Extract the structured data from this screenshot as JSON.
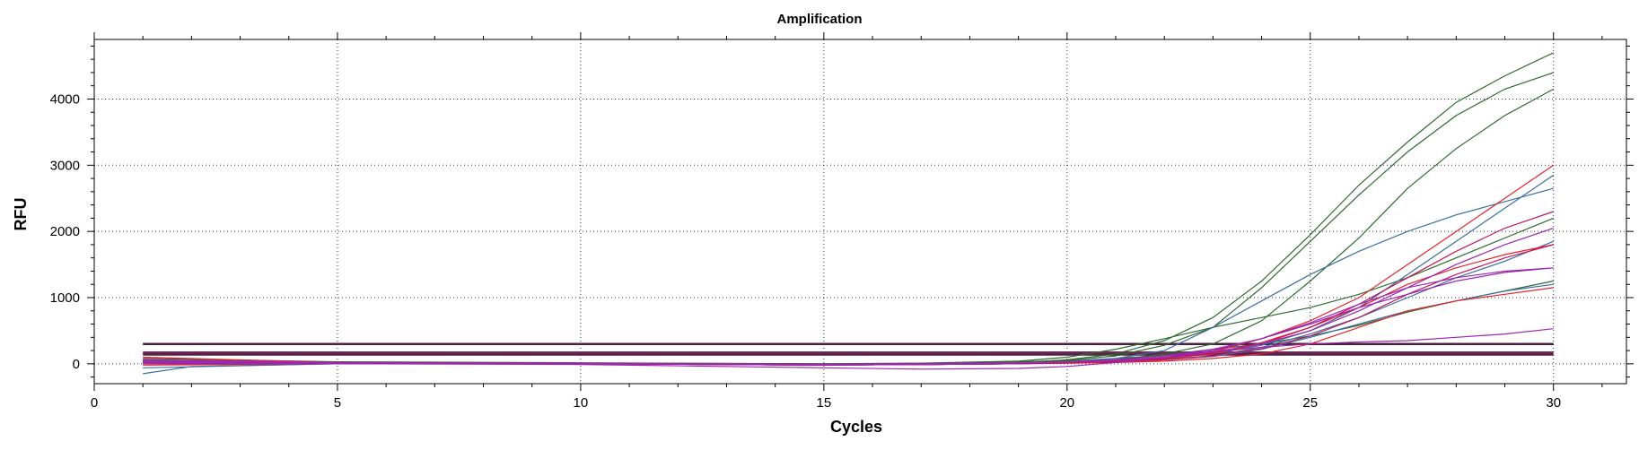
{
  "chart_data": {
    "type": "line",
    "title": "Amplification",
    "xlabel": "Cycles",
    "ylabel": "RFU",
    "xlim": [
      0,
      31.5
    ],
    "ylim": [
      -300,
      4900
    ],
    "x_ticks": [
      0,
      5,
      10,
      15,
      20,
      25,
      30
    ],
    "y_ticks": [
      0,
      1000,
      2000,
      3000,
      4000
    ],
    "grid": true,
    "legend": "none",
    "thresholds": [
      {
        "value": 300,
        "color": "#4b1f3f"
      },
      {
        "value": 170,
        "color": "#6a2a55"
      },
      {
        "value": 140,
        "color": "#5a1e48"
      }
    ],
    "series": [
      {
        "color": "#2f6b2f",
        "points": [
          [
            1,
            40
          ],
          [
            5,
            20
          ],
          [
            10,
            10
          ],
          [
            15,
            -20
          ],
          [
            17,
            0
          ],
          [
            19,
            20
          ],
          [
            20,
            60
          ],
          [
            21,
            150
          ],
          [
            22,
            350
          ],
          [
            23,
            700
          ],
          [
            24,
            1250
          ],
          [
            25,
            1950
          ],
          [
            26,
            2700
          ],
          [
            27,
            3350
          ],
          [
            28,
            3950
          ],
          [
            29,
            4350
          ],
          [
            30,
            4700
          ]
        ]
      },
      {
        "color": "#2f6b2f",
        "points": [
          [
            1,
            30
          ],
          [
            5,
            15
          ],
          [
            10,
            5
          ],
          [
            15,
            -10
          ],
          [
            17,
            0
          ],
          [
            19,
            30
          ],
          [
            20,
            50
          ],
          [
            21,
            120
          ],
          [
            22,
            280
          ],
          [
            23,
            550
          ],
          [
            24,
            1150
          ],
          [
            25,
            1850
          ],
          [
            26,
            2550
          ],
          [
            27,
            3200
          ],
          [
            28,
            3750
          ],
          [
            29,
            4150
          ],
          [
            30,
            4400
          ]
        ]
      },
      {
        "color": "#2f6b2f",
        "points": [
          [
            1,
            20
          ],
          [
            5,
            10
          ],
          [
            10,
            0
          ],
          [
            15,
            -20
          ],
          [
            17,
            -10
          ],
          [
            19,
            0
          ],
          [
            20,
            30
          ],
          [
            21,
            60
          ],
          [
            22,
            150
          ],
          [
            23,
            300
          ],
          [
            24,
            650
          ],
          [
            25,
            1250
          ],
          [
            26,
            1900
          ],
          [
            27,
            2650
          ],
          [
            28,
            3250
          ],
          [
            29,
            3750
          ],
          [
            30,
            4150
          ]
        ]
      },
      {
        "color": "#2f6b2f",
        "points": [
          [
            1,
            60
          ],
          [
            5,
            20
          ],
          [
            10,
            10
          ],
          [
            15,
            0
          ],
          [
            17,
            10
          ],
          [
            19,
            40
          ],
          [
            20,
            100
          ],
          [
            21,
            220
          ],
          [
            22,
            380
          ],
          [
            23,
            550
          ],
          [
            24,
            700
          ],
          [
            25,
            850
          ],
          [
            26,
            1050
          ],
          [
            27,
            1300
          ],
          [
            28,
            1600
          ],
          [
            29,
            1900
          ],
          [
            30,
            2200
          ]
        ]
      },
      {
        "color": "#2f6b2f",
        "points": [
          [
            1,
            80
          ],
          [
            5,
            30
          ],
          [
            10,
            15
          ],
          [
            15,
            0
          ],
          [
            17,
            5
          ],
          [
            19,
            20
          ],
          [
            20,
            40
          ],
          [
            21,
            80
          ],
          [
            22,
            130
          ],
          [
            23,
            220
          ],
          [
            24,
            300
          ],
          [
            25,
            420
          ],
          [
            26,
            580
          ],
          [
            27,
            780
          ],
          [
            28,
            950
          ],
          [
            29,
            1100
          ],
          [
            30,
            1250
          ]
        ]
      },
      {
        "color": "#3a6ea5",
        "points": [
          [
            1,
            -150
          ],
          [
            2,
            -40
          ],
          [
            5,
            0
          ],
          [
            10,
            0
          ],
          [
            15,
            -20
          ],
          [
            17,
            -10
          ],
          [
            19,
            0
          ],
          [
            20,
            30
          ],
          [
            21,
            80
          ],
          [
            22,
            200
          ],
          [
            23,
            550
          ],
          [
            24,
            950
          ],
          [
            25,
            1350
          ],
          [
            26,
            1700
          ],
          [
            27,
            2000
          ],
          [
            28,
            2250
          ],
          [
            29,
            2450
          ],
          [
            30,
            2650
          ]
        ]
      },
      {
        "color": "#3a6ea5",
        "points": [
          [
            1,
            -60
          ],
          [
            5,
            0
          ],
          [
            10,
            0
          ],
          [
            15,
            -10
          ],
          [
            17,
            0
          ],
          [
            19,
            10
          ],
          [
            20,
            20
          ],
          [
            21,
            40
          ],
          [
            22,
            80
          ],
          [
            23,
            150
          ],
          [
            24,
            280
          ],
          [
            25,
            500
          ],
          [
            26,
            850
          ],
          [
            27,
            1350
          ],
          [
            28,
            1850
          ],
          [
            29,
            2350
          ],
          [
            30,
            2850
          ]
        ]
      },
      {
        "color": "#3a6ea5",
        "points": [
          [
            1,
            20
          ],
          [
            5,
            0
          ],
          [
            10,
            0
          ],
          [
            15,
            -20
          ],
          [
            17,
            -10
          ],
          [
            19,
            0
          ],
          [
            20,
            20
          ],
          [
            21,
            40
          ],
          [
            22,
            70
          ],
          [
            23,
            120
          ],
          [
            24,
            250
          ],
          [
            25,
            450
          ],
          [
            26,
            700
          ],
          [
            27,
            1000
          ],
          [
            28,
            1300
          ],
          [
            29,
            1550
          ],
          [
            30,
            1850
          ]
        ]
      },
      {
        "color": "#3a6ea5",
        "points": [
          [
            1,
            30
          ],
          [
            5,
            5
          ],
          [
            10,
            0
          ],
          [
            15,
            -10
          ],
          [
            17,
            -5
          ],
          [
            19,
            5
          ],
          [
            20,
            15
          ],
          [
            21,
            30
          ],
          [
            22,
            60
          ],
          [
            23,
            110
          ],
          [
            24,
            220
          ],
          [
            25,
            400
          ],
          [
            26,
            600
          ],
          [
            27,
            800
          ],
          [
            28,
            950
          ],
          [
            29,
            1100
          ],
          [
            30,
            1200
          ]
        ]
      },
      {
        "color": "#e8222a",
        "points": [
          [
            1,
            -20
          ],
          [
            5,
            0
          ],
          [
            10,
            0
          ],
          [
            15,
            -20
          ],
          [
            17,
            -10
          ],
          [
            19,
            0
          ],
          [
            20,
            10
          ],
          [
            21,
            30
          ],
          [
            22,
            80
          ],
          [
            23,
            180
          ],
          [
            24,
            380
          ],
          [
            25,
            650
          ],
          [
            26,
            1000
          ],
          [
            27,
            1500
          ],
          [
            28,
            2000
          ],
          [
            29,
            2500
          ],
          [
            30,
            3000
          ]
        ]
      },
      {
        "color": "#e8222a",
        "points": [
          [
            1,
            100
          ],
          [
            5,
            20
          ],
          [
            10,
            10
          ],
          [
            15,
            -10
          ],
          [
            17,
            0
          ],
          [
            19,
            10
          ],
          [
            20,
            20
          ],
          [
            21,
            40
          ],
          [
            22,
            80
          ],
          [
            23,
            150
          ],
          [
            24,
            300
          ],
          [
            25,
            550
          ],
          [
            26,
            850
          ],
          [
            27,
            1200
          ],
          [
            28,
            1450
          ],
          [
            29,
            1650
          ],
          [
            30,
            1800
          ]
        ]
      },
      {
        "color": "#e8222a",
        "points": [
          [
            1,
            50
          ],
          [
            5,
            10
          ],
          [
            10,
            0
          ],
          [
            15,
            -20
          ],
          [
            17,
            -10
          ],
          [
            19,
            0
          ],
          [
            20,
            10
          ],
          [
            21,
            20
          ],
          [
            22,
            40
          ],
          [
            23,
            80
          ],
          [
            24,
            150
          ],
          [
            25,
            300
          ],
          [
            26,
            550
          ],
          [
            27,
            800
          ],
          [
            28,
            950
          ],
          [
            29,
            1050
          ],
          [
            30,
            1150
          ]
        ]
      },
      {
        "color": "#c2185b",
        "points": [
          [
            1,
            0
          ],
          [
            5,
            0
          ],
          [
            10,
            0
          ],
          [
            15,
            -20
          ],
          [
            17,
            -10
          ],
          [
            19,
            0
          ],
          [
            20,
            20
          ],
          [
            21,
            40
          ],
          [
            22,
            80
          ],
          [
            23,
            160
          ],
          [
            24,
            320
          ],
          [
            25,
            550
          ],
          [
            26,
            900
          ],
          [
            27,
            1300
          ],
          [
            28,
            1700
          ],
          [
            29,
            2050
          ],
          [
            30,
            2300
          ]
        ]
      },
      {
        "color": "#c2185b",
        "points": [
          [
            1,
            10
          ],
          [
            5,
            0
          ],
          [
            10,
            0
          ],
          [
            15,
            -15
          ],
          [
            17,
            -10
          ],
          [
            19,
            0
          ],
          [
            20,
            15
          ],
          [
            21,
            30
          ],
          [
            22,
            60
          ],
          [
            23,
            120
          ],
          [
            24,
            230
          ],
          [
            25,
            420
          ],
          [
            26,
            700
          ],
          [
            27,
            1050
          ],
          [
            28,
            1350
          ],
          [
            29,
            1600
          ],
          [
            30,
            1800
          ]
        ]
      },
      {
        "color": "#9c27b0",
        "points": [
          [
            1,
            20
          ],
          [
            5,
            0
          ],
          [
            10,
            -10
          ],
          [
            15,
            -60
          ],
          [
            17,
            -80
          ],
          [
            19,
            -70
          ],
          [
            20,
            -40
          ],
          [
            21,
            20
          ],
          [
            22,
            100
          ],
          [
            23,
            180
          ],
          [
            24,
            250
          ],
          [
            25,
            300
          ],
          [
            26,
            330
          ],
          [
            27,
            350
          ],
          [
            28,
            400
          ],
          [
            29,
            450
          ],
          [
            30,
            530
          ]
        ]
      },
      {
        "color": "#9c27b0",
        "points": [
          [
            1,
            40
          ],
          [
            5,
            10
          ],
          [
            10,
            0
          ],
          [
            15,
            -10
          ],
          [
            17,
            0
          ],
          [
            19,
            10
          ],
          [
            20,
            25
          ],
          [
            21,
            50
          ],
          [
            22,
            100
          ],
          [
            23,
            200
          ],
          [
            24,
            380
          ],
          [
            25,
            620
          ],
          [
            26,
            900
          ],
          [
            27,
            1150
          ],
          [
            28,
            1300
          ],
          [
            29,
            1400
          ],
          [
            30,
            1450
          ]
        ]
      },
      {
        "color": "#9c27b0",
        "points": [
          [
            1,
            0
          ],
          [
            5,
            0
          ],
          [
            10,
            0
          ],
          [
            15,
            -20
          ],
          [
            17,
            -10
          ],
          [
            19,
            0
          ],
          [
            20,
            20
          ],
          [
            21,
            50
          ],
          [
            22,
            100
          ],
          [
            23,
            180
          ],
          [
            24,
            300
          ],
          [
            25,
            500
          ],
          [
            26,
            800
          ],
          [
            27,
            1150
          ],
          [
            28,
            1500
          ],
          [
            29,
            1800
          ],
          [
            30,
            2050
          ]
        ]
      },
      {
        "color": "#9c27b0",
        "points": [
          [
            1,
            60
          ],
          [
            5,
            20
          ],
          [
            10,
            10
          ],
          [
            15,
            -5
          ],
          [
            17,
            5
          ],
          [
            19,
            15
          ],
          [
            20,
            30
          ],
          [
            21,
            60
          ],
          [
            22,
            120
          ],
          [
            23,
            220
          ],
          [
            24,
            380
          ],
          [
            25,
            600
          ],
          [
            26,
            850
          ],
          [
            27,
            1050
          ],
          [
            28,
            1250
          ],
          [
            29,
            1380
          ],
          [
            30,
            1450
          ]
        ]
      }
    ]
  }
}
